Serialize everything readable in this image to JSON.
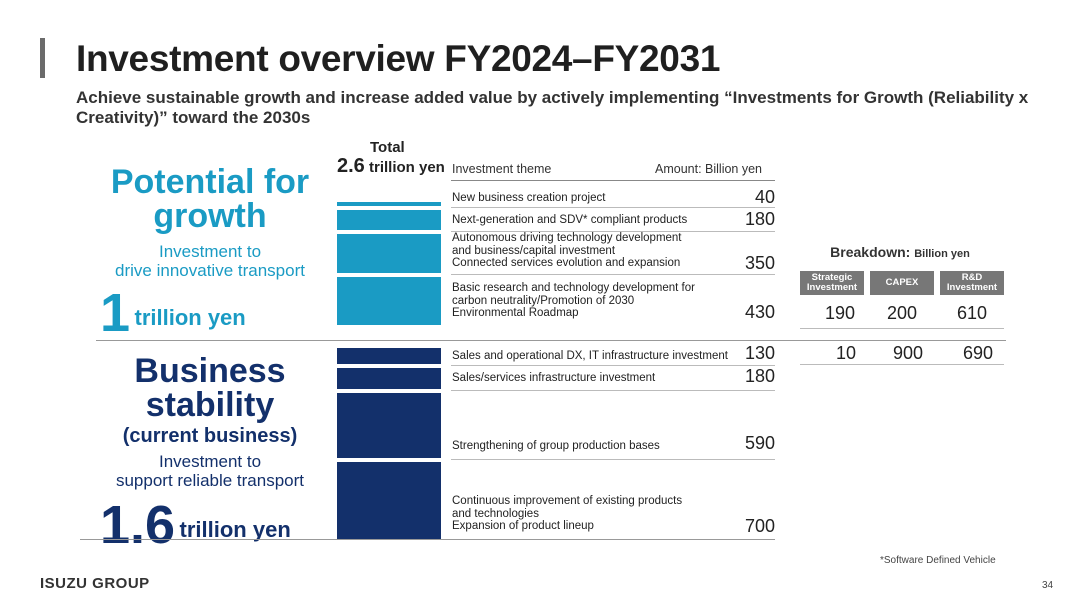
{
  "title": "Investment overview FY2024–FY2031",
  "subtitle": "Achieve sustainable growth and increase added value by actively implementing “Investments for Growth (Reliability x Creativity)” toward the 2030s",
  "growth": {
    "heading_1": "Potential for",
    "heading_2": "growth",
    "sub_1": "Investment to",
    "sub_2": "drive innovative transport",
    "amount": "1",
    "amount_unit": "trillion yen"
  },
  "stability": {
    "heading_1": "Business",
    "heading_2": "stability",
    "heading_3": "(current business)",
    "sub_1": "Investment to",
    "sub_2": "support reliable transport",
    "amount": "1.6",
    "amount_unit": "trillion yen"
  },
  "total": {
    "label": "Total",
    "amount": "2.6",
    "unit": "trillion yen"
  },
  "table": {
    "col_theme": "Investment theme",
    "col_amount": "Amount: Billion yen"
  },
  "chart_data": {
    "type": "table",
    "unit": "Billion yen",
    "growth_items": [
      {
        "theme": [
          "New business creation project"
        ],
        "amount": 40
      },
      {
        "theme": [
          "Next-generation and SDV* compliant products"
        ],
        "amount": 180
      },
      {
        "theme": [
          "Autonomous driving technology development",
          "and business/capital investment",
          "Connected services evolution and expansion"
        ],
        "amount": 350
      },
      {
        "theme": [
          "Basic research and technology development for",
          "carbon neutrality/Promotion of 2030",
          "Environmental Roadmap"
        ],
        "amount": 430
      }
    ],
    "stability_items": [
      {
        "theme": [
          "Sales and operational DX, IT infrastructure investment"
        ],
        "amount": 130
      },
      {
        "theme": [
          "Sales/services infrastructure investment"
        ],
        "amount": 180
      },
      {
        "theme": [
          "Strengthening of group production bases"
        ],
        "amount": 590
      },
      {
        "theme": [
          "Continuous improvement of existing products",
          "and technologies",
          "Expansion of product lineup"
        ],
        "amount": 700
      }
    ],
    "breakdown": {
      "title": "Breakdown:",
      "unit": "Billion yen",
      "headers": [
        [
          "Strategic",
          "Investment"
        ],
        [
          "CAPEX"
        ],
        [
          "R&D",
          "Investment"
        ]
      ],
      "growth_values": [
        190,
        200,
        610
      ],
      "stability_values": [
        10,
        900,
        690
      ]
    }
  },
  "colors": {
    "growth": "#1a9bc4",
    "stability": "#13306b",
    "header_gray": "#777777"
  },
  "footnote": "*Software Defined Vehicle",
  "logo": "ISUZU GROUP",
  "page_number": "34"
}
